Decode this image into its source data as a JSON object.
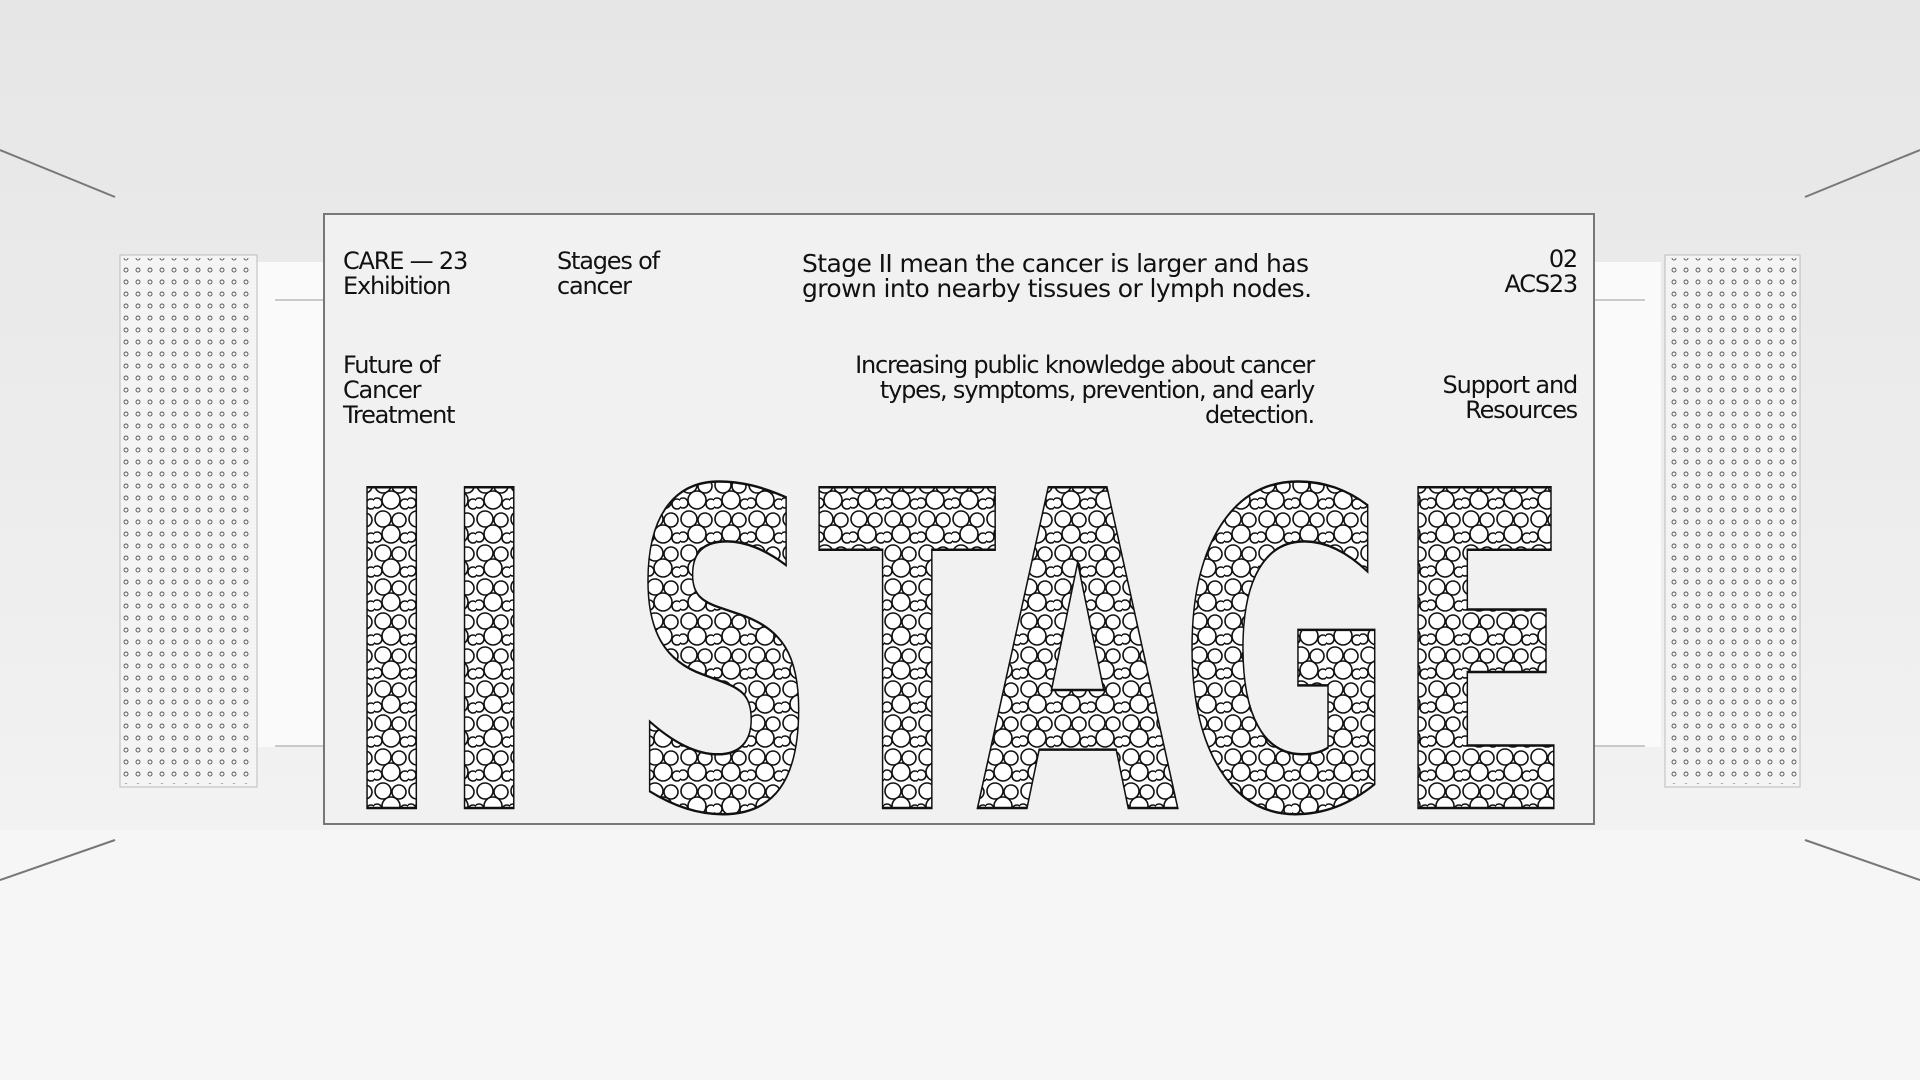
{
  "poster": {
    "top_left": [
      "CARE — 23",
      "Exhibition"
    ],
    "top_second": [
      "Stages of",
      "cancer"
    ],
    "top_paragraph": [
      "Stage II mean the cancer is larger and has",
      "grown into nearby tissues or lymph nodes."
    ],
    "top_right": [
      "02",
      "ACS23"
    ],
    "mid_left": [
      "Future of",
      "Cancer",
      "Treatment"
    ],
    "mid_paragraph": [
      "Increasing public knowledge about cancer",
      "types, symptoms, prevention, and early",
      "detection."
    ],
    "mid_right": [
      "Support and",
      "Resources"
    ],
    "headline": "II STAGE"
  }
}
